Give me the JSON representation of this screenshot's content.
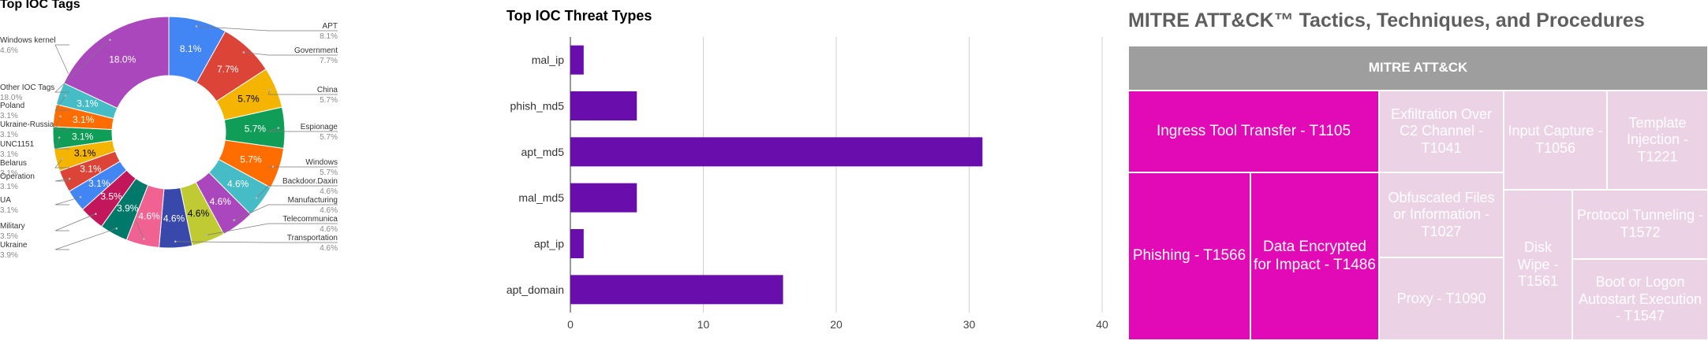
{
  "chart_data": [
    {
      "type": "pie",
      "title": "Top IOC Tags",
      "donut": true,
      "slices": [
        {
          "label": "APT",
          "value": 8.1,
          "value_label": "8.1%",
          "color": "#4285f4"
        },
        {
          "label": "Government",
          "value": 7.7,
          "value_label": "7.7%",
          "color": "#db4437"
        },
        {
          "label": "China",
          "value": 5.7,
          "value_label": "5.7%",
          "color": "#f4b400"
        },
        {
          "label": "Espionage",
          "value": 5.7,
          "value_label": "5.7%",
          "color": "#0f9d58"
        },
        {
          "label": "Windows",
          "value": 5.7,
          "value_label": "5.7%",
          "color": "#ff6d00"
        },
        {
          "label": "Backdoor.Daxin",
          "value": 4.6,
          "value_label": "4.6%",
          "color": "#46bdc6"
        },
        {
          "label": "Manufacturing",
          "value": 4.6,
          "value_label": "4.6%",
          "color": "#ab47bc"
        },
        {
          "label": "Telecommunica",
          "value": 4.6,
          "value_label": "4.6%",
          "color": "#c0ca33"
        },
        {
          "label": "Transportation",
          "value": 4.6,
          "value_label": "4.6%",
          "color": "#3949ab"
        },
        {
          "label": "Windows kernel",
          "value": 4.6,
          "value_label": "4.6%",
          "color": "#f06292"
        },
        {
          "label": "Ukraine",
          "value": 3.9,
          "value_label": "3.9%",
          "color": "#00796b"
        },
        {
          "label": "Military",
          "value": 3.5,
          "value_label": "3.5%",
          "color": "#c2185b"
        },
        {
          "label": "UA",
          "value": 3.1,
          "value_label": "3.1%",
          "color": "#4285f4"
        },
        {
          "label": "Operation",
          "value": 3.1,
          "value_label": "3.1%",
          "color": "#db4437"
        },
        {
          "label": "Belarus",
          "value": 3.1,
          "value_label": "3.1%",
          "color": "#f4b400"
        },
        {
          "label": "UNC1151",
          "value": 3.1,
          "value_label": "3.1%",
          "color": "#0f9d58"
        },
        {
          "label": "Ukraine-Russia",
          "value": 3.1,
          "value_label": "3.1%",
          "color": "#ff6d00"
        },
        {
          "label": "Poland",
          "value": 3.1,
          "value_label": "3.1%",
          "color": "#46bdc6"
        },
        {
          "label": "Other IOC Tags",
          "value": 18.0,
          "value_label": "18.0%",
          "color": "#ab47bc"
        }
      ]
    },
    {
      "type": "bar",
      "orientation": "horizontal",
      "title": "Top IOC Threat Types",
      "categories": [
        "mal_ip",
        "phish_md5",
        "apt_md5",
        "mal_md5",
        "apt_ip",
        "apt_domain"
      ],
      "values": [
        1,
        5,
        31,
        5,
        1,
        16
      ],
      "xlim": [
        0,
        40
      ],
      "xticks": [
        0,
        10,
        20,
        30,
        40
      ],
      "color": "#6a0dad",
      "grid": true
    },
    {
      "type": "treemap",
      "title": "MITRE ATT&CK™ Tactics, Techniques, and Procedures",
      "root": "MITRE ATT&CK",
      "items": [
        {
          "label": "Ingress Tool Transfer - T1105",
          "color": "#e20ab6"
        },
        {
          "label": "Phishing - T1566",
          "color": "#e20ab6"
        },
        {
          "label": "Data Encrypted for Impact - T1486",
          "color": "#e20ab6"
        },
        {
          "label": "Exfiltration Over C2 Channel - T1041",
          "color": "#ecd2e5"
        },
        {
          "label": "Input Capture - T1056",
          "color": "#ecd2e5"
        },
        {
          "label": "Template Injection - T1221",
          "color": "#ecd2e5"
        },
        {
          "label": "Obfuscated Files or Information - T1027",
          "color": "#ecd2e5"
        },
        {
          "label": "Proxy - T1090",
          "color": "#ecd2e5"
        },
        {
          "label": "Disk Wipe - T1561",
          "color": "#ecd2e5"
        },
        {
          "label": "Protocol Tunneling - T1572",
          "color": "#ecd2e5"
        },
        {
          "label": "Boot or Logon Autostart Execution - T1547",
          "color": "#ecd2e5"
        }
      ]
    }
  ]
}
